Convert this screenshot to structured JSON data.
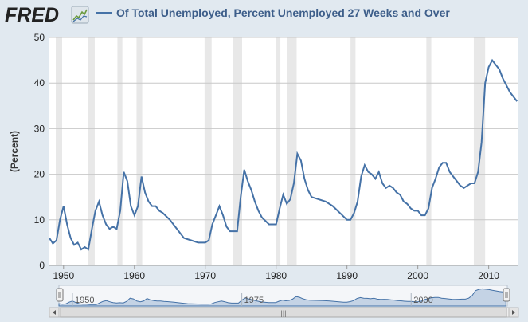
{
  "header": {
    "logo_text": "FRED",
    "logo_icon": "trend-chart-icon",
    "title": "Of Total Unemployed, Percent Unemployed 27 Weeks and Over"
  },
  "colors": {
    "background": "#e1e9f0",
    "plot_bg": "#ffffff",
    "line": "#4572a7",
    "recession": "#e8e8e8",
    "grid": "#c8c8c8",
    "logo": "#222222"
  },
  "navigator": {
    "tick_labels": [
      "1950",
      "1975",
      "2000"
    ],
    "scroll_grip": "|||"
  },
  "chart_data": {
    "type": "line",
    "title": "Of Total Unemployed, Percent Unemployed 27 Weeks and Over",
    "xlabel": "",
    "ylabel": "(Percent)",
    "xlim": [
      1948,
      2014.2
    ],
    "ylim": [
      0,
      50
    ],
    "yticks": [
      0,
      10,
      20,
      30,
      40,
      50
    ],
    "xticks": [
      1950,
      1960,
      1970,
      1980,
      1990,
      2000,
      2010
    ],
    "grid": true,
    "legend": "top-left",
    "series": [
      {
        "name": "Of Total Unemployed, Percent Unemployed 27 Weeks and Over",
        "x": [
          1948.0,
          1948.5,
          1949.0,
          1949.5,
          1950.0,
          1950.5,
          1951.0,
          1951.5,
          1952.0,
          1952.5,
          1953.0,
          1953.5,
          1954.0,
          1954.5,
          1955.0,
          1955.5,
          1956.0,
          1956.5,
          1957.0,
          1957.5,
          1958.0,
          1958.5,
          1959.0,
          1959.5,
          1960.0,
          1960.5,
          1961.0,
          1961.5,
          1962.0,
          1962.5,
          1963.0,
          1963.5,
          1964.0,
          1965.0,
          1966.0,
          1967.0,
          1968.0,
          1969.0,
          1970.0,
          1970.5,
          1971.0,
          1971.5,
          1972.0,
          1972.5,
          1973.0,
          1973.5,
          1974.0,
          1974.5,
          1975.0,
          1975.5,
          1976.0,
          1976.5,
          1977.0,
          1977.5,
          1978.0,
          1979.0,
          1980.0,
          1980.5,
          1981.0,
          1981.5,
          1982.0,
          1982.5,
          1983.0,
          1983.5,
          1984.0,
          1984.5,
          1985.0,
          1986.0,
          1987.0,
          1988.0,
          1989.0,
          1990.0,
          1990.5,
          1991.0,
          1991.5,
          1992.0,
          1992.5,
          1993.0,
          1993.5,
          1994.0,
          1994.5,
          1995.0,
          1995.5,
          1996.0,
          1996.5,
          1997.0,
          1997.5,
          1998.0,
          1998.5,
          1999.0,
          1999.5,
          2000.0,
          2000.5,
          2001.0,
          2001.5,
          2002.0,
          2002.5,
          2003.0,
          2003.5,
          2004.0,
          2004.5,
          2005.0,
          2005.5,
          2006.0,
          2006.5,
          2007.0,
          2007.5,
          2008.0,
          2008.5,
          2009.0,
          2009.5,
          2010.0,
          2010.5,
          2011.0,
          2011.5,
          2012.0,
          2012.5,
          2013.0,
          2013.5,
          2014.0
        ],
        "values": [
          6.0,
          4.8,
          5.5,
          10.0,
          13.0,
          9.0,
          6.0,
          4.5,
          5.0,
          3.5,
          4.0,
          3.5,
          8.0,
          12.0,
          14.0,
          11.0,
          9.0,
          8.0,
          8.5,
          8.0,
          12.0,
          20.5,
          18.5,
          13.0,
          11.0,
          13.0,
          19.5,
          16.0,
          14.0,
          13.0,
          13.0,
          12.0,
          11.5,
          10.0,
          8.0,
          6.0,
          5.5,
          5.0,
          5.0,
          5.5,
          9.0,
          11.0,
          13.0,
          11.0,
          8.5,
          7.5,
          7.5,
          7.5,
          15.0,
          21.0,
          18.5,
          16.5,
          14.0,
          12.0,
          10.5,
          9.0,
          9.0,
          12.5,
          15.5,
          13.5,
          14.5,
          18.0,
          24.5,
          23.0,
          19.0,
          16.5,
          15.0,
          14.5,
          14.0,
          13.0,
          11.5,
          10.0,
          10.0,
          11.5,
          14.0,
          19.5,
          22.0,
          20.5,
          20.0,
          19.0,
          20.5,
          18.0,
          17.0,
          17.5,
          17.0,
          16.0,
          15.5,
          14.0,
          13.5,
          12.5,
          12.0,
          12.0,
          11.0,
          11.0,
          12.5,
          17.0,
          19.0,
          21.5,
          22.5,
          22.5,
          20.5,
          19.5,
          18.5,
          17.5,
          17.0,
          17.5,
          18.0,
          18.0,
          20.5,
          27.0,
          40.0,
          43.5,
          45.0,
          44.0,
          43.0,
          41.0,
          39.5,
          38.0,
          37.0,
          36.0
        ]
      }
    ],
    "recessions": [
      [
        1948.9,
        1949.8
      ],
      [
        1953.5,
        1954.4
      ],
      [
        1957.6,
        1958.3
      ],
      [
        1960.3,
        1961.1
      ],
      [
        1969.9,
        1970.9
      ],
      [
        1973.9,
        1975.2
      ],
      [
        1980.0,
        1980.6
      ],
      [
        1981.5,
        1982.9
      ],
      [
        1990.5,
        1991.2
      ],
      [
        2001.2,
        2001.9
      ],
      [
        2007.9,
        2009.5
      ]
    ]
  }
}
